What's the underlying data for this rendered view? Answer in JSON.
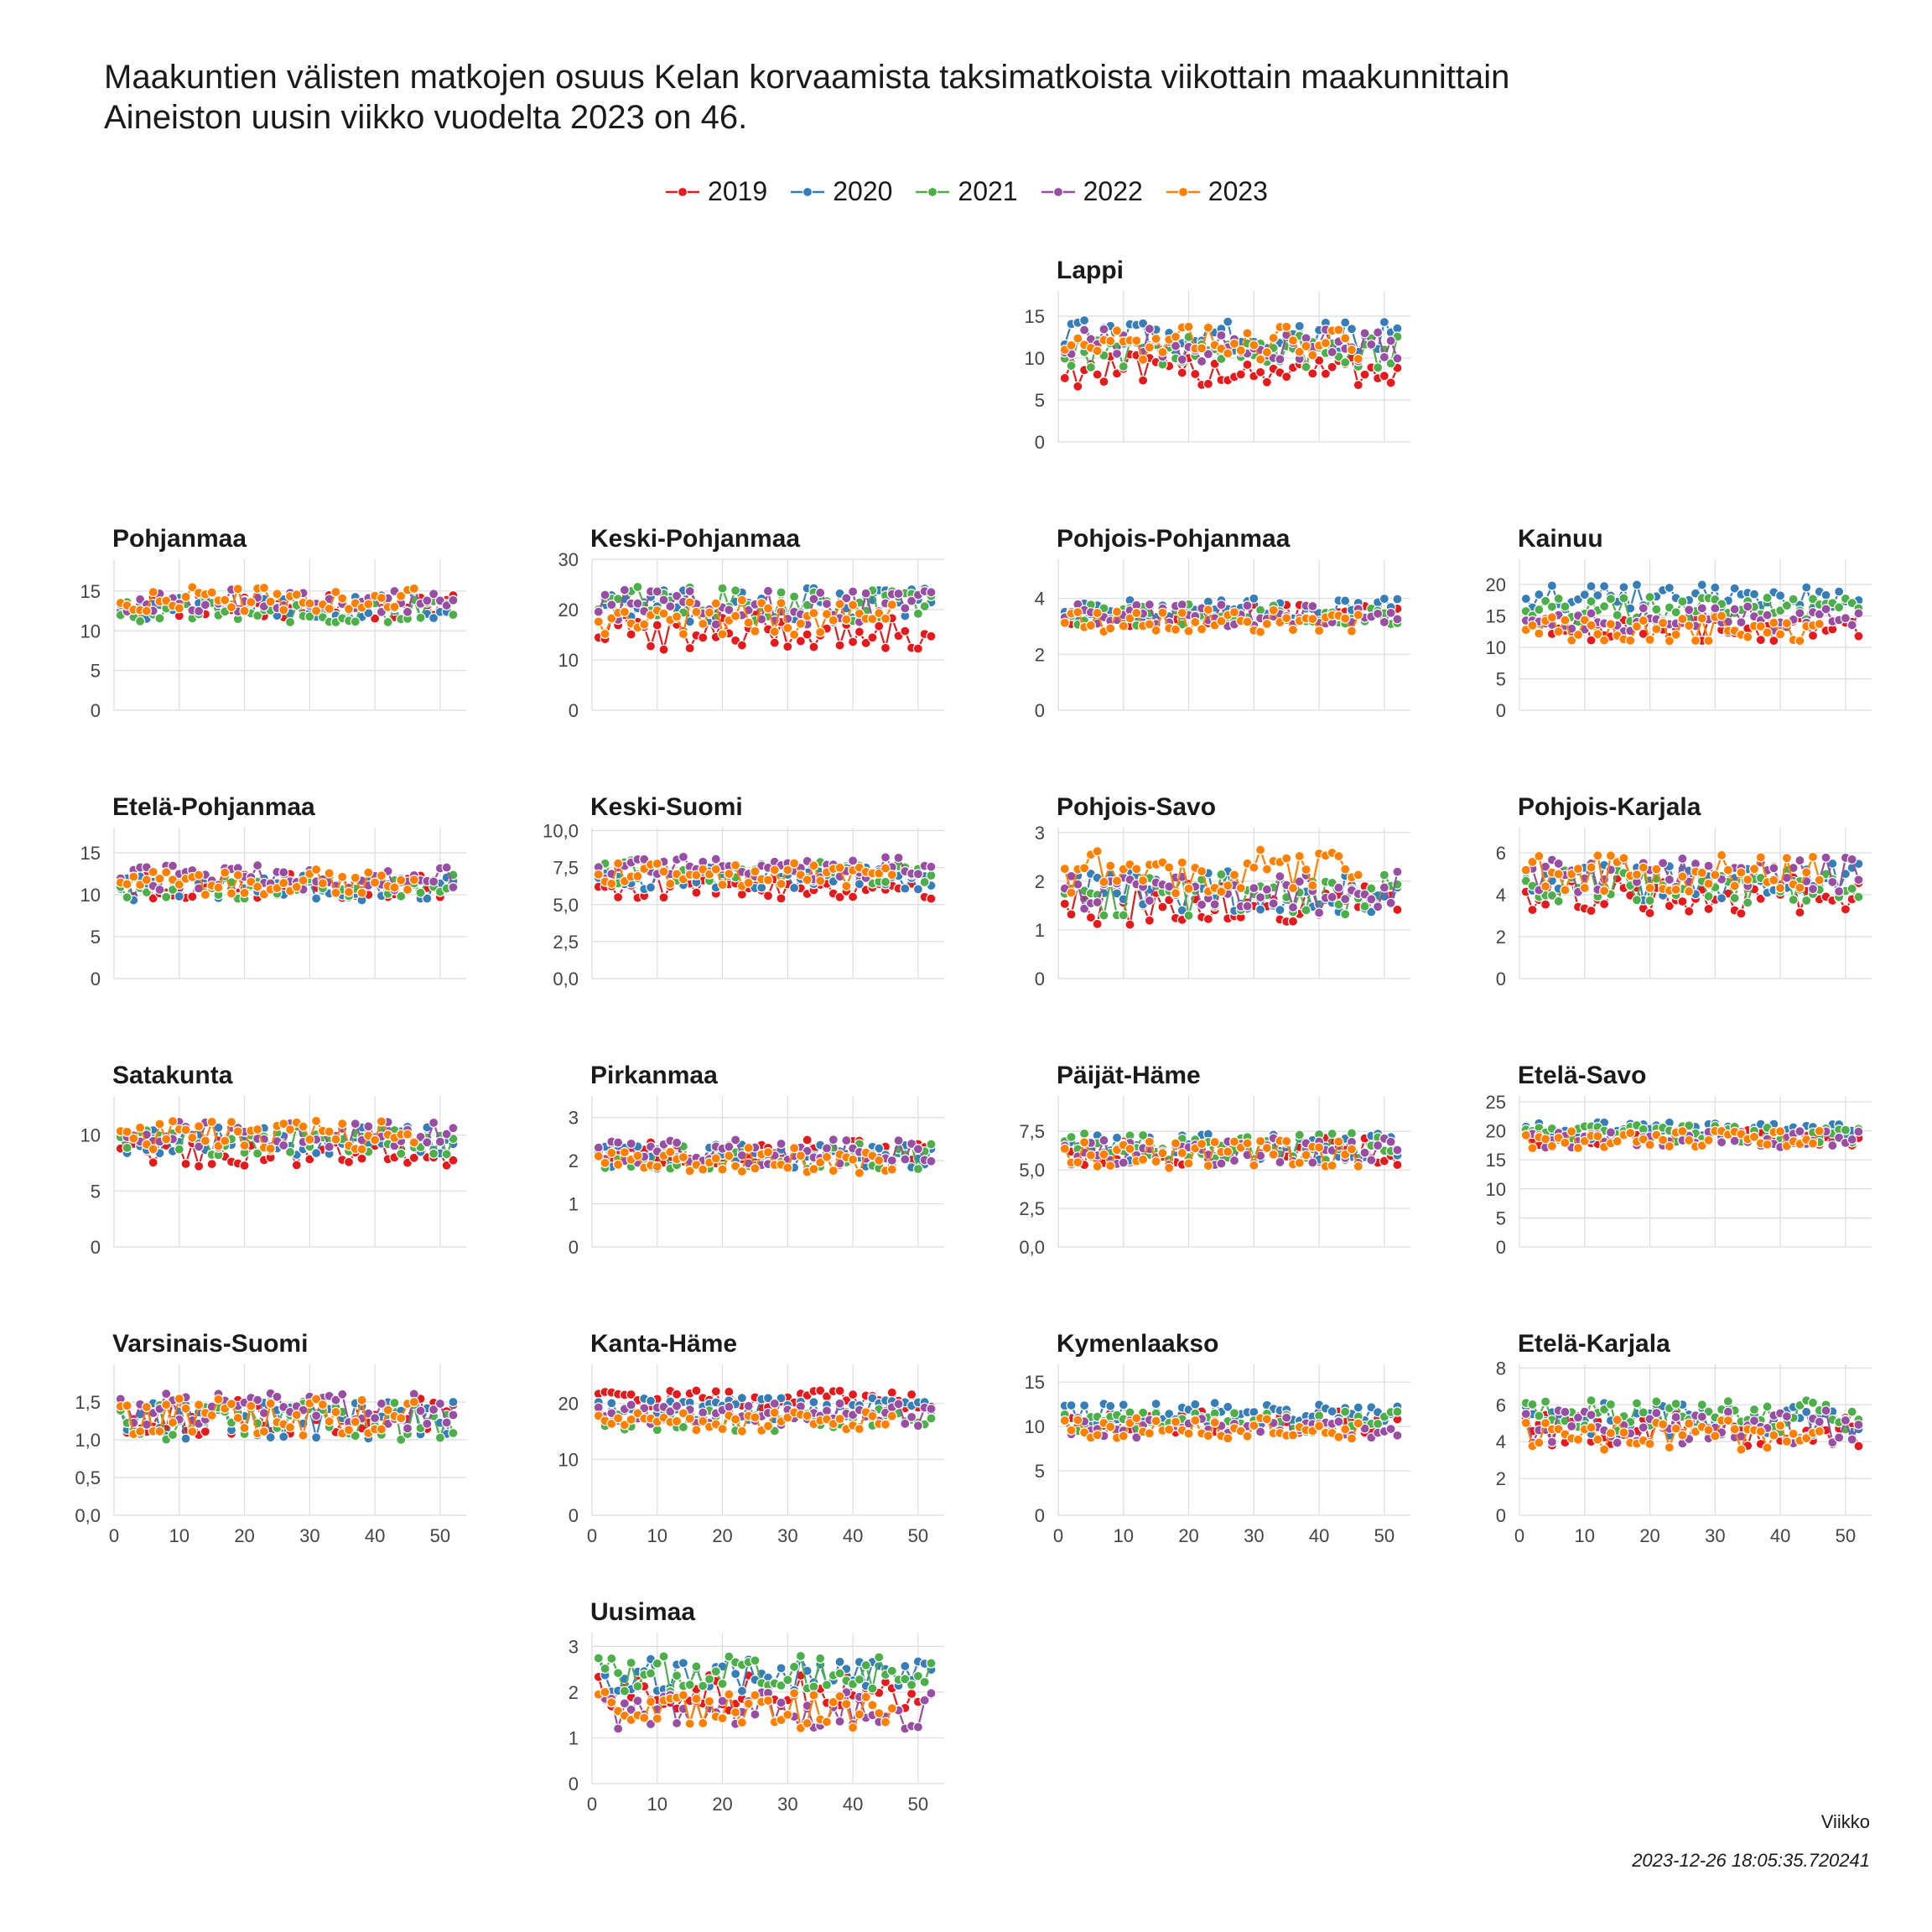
{
  "title_lines": [
    "Maakuntien välisten matkojen osuus Kelan korvaamista taksimatkoista viikottain maakunnittain",
    "Aineiston uusin viikko vuodelta 2023 on 46."
  ],
  "x_axis_label": "Viikko",
  "caption": "2023-12-26 18:05:35.720241",
  "chart_data": {
    "type": "line",
    "x_ticks": [
      0,
      10,
      20,
      30,
      40,
      50
    ],
    "xlim": [
      0,
      54
    ],
    "grid": true,
    "legend_position": "top",
    "series_names": [
      "2019",
      "2020",
      "2021",
      "2022",
      "2023"
    ],
    "series_colors": {
      "2019": "#e41a1c",
      "2020": "#377eb8",
      "2021": "#4daf4a",
      "2022": "#984ea3",
      "2023": "#ff7f00"
    },
    "panels": [
      {
        "name": "Lappi",
        "ylim": [
          0,
          18
        ],
        "yticks": [
          "0",
          "5",
          "10",
          "15"
        ],
        "ytick_values": [
          0,
          5,
          10,
          15
        ],
        "levels": {
          "2019": 8.5,
          "2020": 12.5,
          "2021": 10.8,
          "2022": 11.5,
          "2023": 11.8
        },
        "amp": 2.0
      },
      {
        "name": "Pohjanmaa",
        "ylim": [
          0,
          19
        ],
        "yticks": [
          "0",
          "5",
          "10",
          "15"
        ],
        "ytick_values": [
          0,
          5,
          10,
          15
        ],
        "levels": {
          "2019": 13.0,
          "2020": 13.0,
          "2021": 12.5,
          "2022": 13.8,
          "2023": 14.0
        },
        "amp": 1.5
      },
      {
        "name": "Keski-Pohjanmaa",
        "ylim": [
          0,
          30
        ],
        "yticks": [
          "0",
          "10",
          "20",
          "30"
        ],
        "ytick_values": [
          0,
          10,
          20,
          30
        ],
        "levels": {
          "2019": 15.5,
          "2020": 21.0,
          "2021": 21.0,
          "2022": 20.5,
          "2023": 18.5
        },
        "amp": 3.5
      },
      {
        "name": "Pohjois-Pohjanmaa",
        "ylim": [
          0,
          5.4
        ],
        "yticks": [
          "0",
          "2",
          "4"
        ],
        "ytick_values": [
          0,
          2,
          4
        ],
        "levels": {
          "2019": 3.4,
          "2020": 3.6,
          "2021": 3.4,
          "2022": 3.4,
          "2023": 3.2
        },
        "amp": 0.4
      },
      {
        "name": "Kainuu",
        "ylim": [
          0,
          24
        ],
        "yticks": [
          "0",
          "5",
          "10",
          "15",
          "20"
        ],
        "ytick_values": [
          0,
          5,
          10,
          15,
          20
        ],
        "levels": {
          "2019": 13.0,
          "2020": 18.0,
          "2021": 16.0,
          "2022": 14.5,
          "2023": 13.0
        },
        "amp": 2.0
      },
      {
        "name": "Etelä-Pohjanmaa",
        "ylim": [
          0,
          18
        ],
        "yticks": [
          "0",
          "5",
          "10",
          "15"
        ],
        "ytick_values": [
          0,
          5,
          10,
          15
        ],
        "levels": {
          "2019": 11.0,
          "2020": 10.8,
          "2021": 11.0,
          "2022": 12.0,
          "2023": 11.5
        },
        "amp": 1.5
      },
      {
        "name": "Keski-Suomi",
        "ylim": [
          0,
          10.2
        ],
        "yticks": [
          "0,0",
          "2,5",
          "5,0",
          "7,5",
          "10,0"
        ],
        "ytick_values": [
          0,
          2.5,
          5,
          7.5,
          10
        ],
        "levels": {
          "2019": 6.2,
          "2020": 6.8,
          "2021": 7.2,
          "2022": 7.5,
          "2023": 7.0
        },
        "amp": 0.8
      },
      {
        "name": "Pohjois-Savo",
        "ylim": [
          0,
          3.1
        ],
        "yticks": [
          "0",
          "1",
          "2",
          "3"
        ],
        "ytick_values": [
          0,
          1,
          2,
          3
        ],
        "levels": {
          "2019": 1.5,
          "2020": 1.8,
          "2021": 1.7,
          "2022": 1.8,
          "2023": 2.2
        },
        "amp": 0.45
      },
      {
        "name": "Pohjois-Karjala",
        "ylim": [
          0,
          7.2
        ],
        "yticks": [
          "0",
          "2",
          "4",
          "6"
        ],
        "ytick_values": [
          0,
          2,
          4,
          6
        ],
        "levels": {
          "2019": 4.0,
          "2020": 4.6,
          "2021": 4.5,
          "2022": 5.0,
          "2023": 5.0
        },
        "amp": 0.9
      },
      {
        "name": "Satakunta",
        "ylim": [
          0,
          13.5
        ],
        "yticks": [
          "0",
          "5",
          "10"
        ],
        "ytick_values": [
          0,
          5,
          10
        ],
        "levels": {
          "2019": 8.5,
          "2020": 9.5,
          "2021": 9.5,
          "2022": 10.0,
          "2023": 10.0
        },
        "amp": 1.3
      },
      {
        "name": "Pirkanmaa",
        "ylim": [
          0,
          3.5
        ],
        "yticks": [
          "0",
          "1",
          "2",
          "3"
        ],
        "ytick_values": [
          0,
          1,
          2,
          3
        ],
        "levels": {
          "2019": 2.2,
          "2020": 2.1,
          "2021": 2.1,
          "2022": 2.2,
          "2023": 2.0
        },
        "amp": 0.3
      },
      {
        "name": "Päijät-Häme",
        "ylim": [
          0,
          9.8
        ],
        "yticks": [
          "0,0",
          "2,5",
          "5,0",
          "7,5"
        ],
        "ytick_values": [
          0,
          2.5,
          5,
          7.5
        ],
        "levels": {
          "2019": 6.2,
          "2020": 6.5,
          "2021": 6.5,
          "2022": 6.2,
          "2023": 6.0
        },
        "amp": 0.9
      },
      {
        "name": "Etelä-Savo",
        "ylim": [
          0,
          26
        ],
        "yticks": [
          "0",
          "5",
          "10",
          "15",
          "20",
          "25"
        ],
        "ytick_values": [
          0,
          5,
          10,
          15,
          20,
          25
        ],
        "levels": {
          "2019": 19.0,
          "2020": 20.0,
          "2021": 19.5,
          "2022": 18.5,
          "2023": 18.5
        },
        "amp": 1.5
      },
      {
        "name": "Varsinais-Suomi",
        "ylim": [
          0,
          2.0
        ],
        "yticks": [
          "0,0",
          "0,5",
          "1,0",
          "1,5"
        ],
        "ytick_values": [
          0,
          0.5,
          1,
          1.5
        ],
        "levels": {
          "2019": 1.3,
          "2020": 1.25,
          "2021": 1.25,
          "2022": 1.4,
          "2023": 1.3
        },
        "amp": 0.25
      },
      {
        "name": "Kanta-Häme",
        "ylim": [
          0,
          27
        ],
        "yticks": [
          "0",
          "10",
          "20"
        ],
        "ytick_values": [
          0,
          10,
          20
        ],
        "levels": {
          "2019": 20.5,
          "2020": 19.0,
          "2021": 17.0,
          "2022": 18.0,
          "2023": 16.5
        },
        "amp": 2.0
      },
      {
        "name": "Kymenlaakso",
        "ylim": [
          0,
          17
        ],
        "yticks": [
          "0",
          "5",
          "10",
          "15"
        ],
        "ytick_values": [
          0,
          5,
          10,
          15
        ],
        "levels": {
          "2019": 10.5,
          "2020": 11.5,
          "2021": 10.5,
          "2022": 9.8,
          "2023": 9.8
        },
        "amp": 1.2
      },
      {
        "name": "Etelä-Karjala",
        "ylim": [
          0,
          8.2
        ],
        "yticks": [
          "0",
          "2",
          "4",
          "6",
          "8"
        ],
        "ytick_values": [
          0,
          2,
          4,
          6,
          8
        ],
        "levels": {
          "2019": 4.6,
          "2020": 5.2,
          "2021": 5.4,
          "2022": 4.8,
          "2023": 4.3
        },
        "amp": 0.9
      },
      {
        "name": "Uusimaa",
        "ylim": [
          0,
          3.3
        ],
        "yticks": [
          "0",
          "1",
          "2",
          "3"
        ],
        "ytick_values": [
          0,
          1,
          2,
          3
        ],
        "levels": {
          "2019": 2.0,
          "2020": 2.4,
          "2021": 2.4,
          "2022": 1.6,
          "2023": 1.6
        },
        "amp": 0.4
      }
    ]
  }
}
